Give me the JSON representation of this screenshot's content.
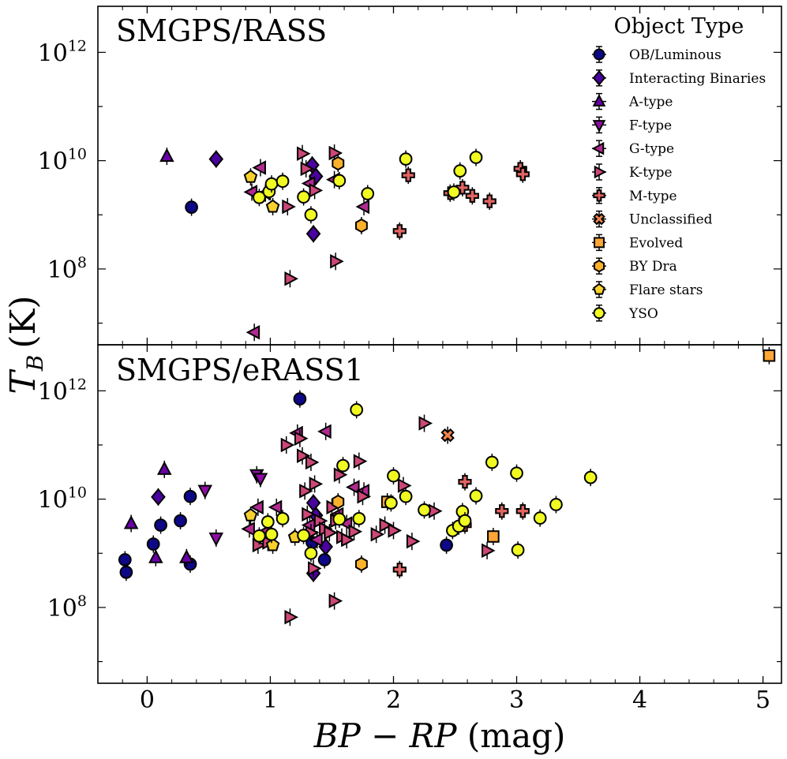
{
  "chart_data": {
    "type": "scatter",
    "xlabel": "BP − RP (mag)",
    "xlabel_parts": {
      "var1": "BP",
      "minus": "−",
      "var2": "RP",
      "unit": "(mag)"
    },
    "ylabel": "T_B (K)",
    "ylabel_parts": {
      "var": "T",
      "sub": "B",
      "unit": "(K)"
    },
    "xlim": [
      -0.4,
      5.15
    ],
    "ylim_log10": [
      6.6,
      12.85
    ],
    "x_ticks": [
      0,
      1,
      2,
      3,
      4,
      5
    ],
    "x_tick_labels": [
      "0",
      "1",
      "2",
      "3",
      "4",
      "5"
    ],
    "y_ticks_log10": [
      8,
      10,
      12
    ],
    "y_tick_base": "10",
    "y_tick_exponents": [
      "8",
      "10",
      "12"
    ],
    "legend": {
      "title": "Object Type",
      "placement": "top-right",
      "entries": [
        {
          "name": "OB/Luminous",
          "marker": "circle",
          "color": "#0d0887"
        },
        {
          "name": "Interacting Binaries",
          "marker": "diamond",
          "color": "#4a02a0"
        },
        {
          "name": "A-type",
          "marker": "triangle-up",
          "color": "#6a00a8"
        },
        {
          "name": "F-type",
          "marker": "triangle-down",
          "color": "#8f0da4"
        },
        {
          "name": "G-type",
          "marker": "triangle-left",
          "color": "#b12a90"
        },
        {
          "name": "K-type",
          "marker": "triangle-right",
          "color": "#cc4778"
        },
        {
          "name": "M-type",
          "marker": "plus",
          "color": "#e16462"
        },
        {
          "name": "Unclassified",
          "marker": "x",
          "color": "#f2844b"
        },
        {
          "name": "Evolved",
          "marker": "square",
          "color": "#fca636"
        },
        {
          "name": "BY Dra",
          "marker": "hexagon",
          "color": "#fcb12b"
        },
        {
          "name": "Flare stars",
          "marker": "pentagon",
          "color": "#f6d02d"
        },
        {
          "name": "YSO",
          "marker": "circle",
          "color": "#f0f921"
        }
      ]
    },
    "panels": [
      {
        "title": "SMGPS/RASS",
        "series": [
          {
            "name": "OB/Luminous",
            "points": [
              [
                0.36,
                9.14
              ]
            ]
          },
          {
            "name": "Interacting Binaries",
            "points": [
              [
                0.56,
                10.03
              ],
              [
                1.34,
                9.92
              ],
              [
                1.37,
                9.71
              ],
              [
                1.35,
                8.65
              ]
            ]
          },
          {
            "name": "A-type",
            "points": [
              [
                0.16,
                10.08
              ]
            ]
          },
          {
            "name": "F-type",
            "points": []
          },
          {
            "name": "G-type",
            "points": [
              [
                0.85,
                9.42
              ],
              [
                0.92,
                9.87
              ],
              [
                0.96,
                9.4
              ],
              [
                1.32,
                9.58
              ],
              [
                1.52,
                9.65
              ],
              [
                1.76,
                9.15
              ],
              [
                0.87,
                6.83
              ]
            ]
          },
          {
            "name": "K-type",
            "points": [
              [
                1.14,
                9.15
              ],
              [
                1.26,
                10.13
              ],
              [
                1.29,
                9.85
              ],
              [
                1.36,
                9.45
              ],
              [
                1.52,
                10.14
              ],
              [
                1.53,
                8.14
              ],
              [
                1.16,
                7.82
              ]
            ]
          },
          {
            "name": "M-type",
            "points": [
              [
                2.12,
                9.73
              ],
              [
                2.46,
                9.4
              ],
              [
                2.56,
                9.5
              ],
              [
                2.64,
                9.35
              ],
              [
                2.78,
                9.25
              ],
              [
                3.03,
                9.85
              ],
              [
                3.05,
                9.75
              ],
              [
                2.05,
                8.7
              ]
            ]
          },
          {
            "name": "Unclassified",
            "points": []
          },
          {
            "name": "Evolved",
            "points": []
          },
          {
            "name": "BY Dra",
            "points": [
              [
                1.55,
                9.95
              ],
              [
                1.74,
                8.8
              ]
            ]
          },
          {
            "name": "Flare stars",
            "points": [
              [
                0.84,
                9.7
              ],
              [
                1.02,
                9.15
              ]
            ]
          },
          {
            "name": "YSO",
            "points": [
              [
                0.91,
                9.32
              ],
              [
                0.99,
                9.43
              ],
              [
                1.01,
                9.57
              ],
              [
                1.1,
                9.62
              ],
              [
                1.27,
                9.33
              ],
              [
                1.33,
                9.0
              ],
              [
                1.56,
                9.63
              ],
              [
                1.79,
                9.39
              ],
              [
                2.1,
                10.03
              ],
              [
                2.49,
                9.42
              ],
              [
                2.54,
                9.81
              ],
              [
                2.67,
                10.06
              ]
            ]
          }
        ]
      },
      {
        "title": "SMGPS/eRASS1",
        "series": [
          {
            "name": "OB/Luminous",
            "points": [
              [
                -0.18,
                8.88
              ],
              [
                -0.17,
                8.65
              ],
              [
                0.05,
                9.17
              ],
              [
                0.11,
                9.52
              ],
              [
                0.27,
                9.6
              ],
              [
                0.35,
                10.05
              ],
              [
                0.35,
                8.8
              ],
              [
                1.24,
                11.85
              ],
              [
                1.34,
                9.2
              ],
              [
                1.44,
                8.88
              ],
              [
                2.43,
                9.15
              ]
            ]
          },
          {
            "name": "Interacting Binaries",
            "points": [
              [
                0.09,
                10.04
              ],
              [
                1.35,
                9.93
              ],
              [
                1.37,
                9.7
              ],
              [
                1.45,
                9.12
              ],
              [
                1.35,
                8.63
              ]
            ]
          },
          {
            "name": "A-type",
            "points": [
              [
                -0.13,
                9.55
              ],
              [
                0.07,
                8.92
              ],
              [
                0.14,
                10.55
              ],
              [
                0.32,
                8.92
              ]
            ]
          },
          {
            "name": "F-type",
            "points": [
              [
                0.47,
                10.16
              ],
              [
                0.56,
                9.28
              ],
              [
                0.89,
                10.45
              ],
              [
                0.92,
                10.38
              ]
            ]
          },
          {
            "name": "G-type",
            "points": [
              [
                0.83,
                9.45
              ],
              [
                0.9,
                9.85
              ],
              [
                0.96,
                9.4
              ],
              [
                1.05,
                9.85
              ],
              [
                1.22,
                11.22
              ],
              [
                1.32,
                9.52
              ],
              [
                1.38,
                9.25
              ],
              [
                1.45,
                11.25
              ],
              [
                1.55,
                9.72
              ],
              [
                1.62,
                9.55
              ],
              [
                1.68,
                10.22
              ],
              [
                1.76,
                10.15
              ]
            ]
          },
          {
            "name": "K-type",
            "points": [
              [
                0.9,
                9.15
              ],
              [
                0.98,
                9.2
              ],
              [
                1.13,
                11.0
              ],
              [
                1.24,
                11.12
              ],
              [
                1.26,
                10.8
              ],
              [
                1.28,
                10.15
              ],
              [
                1.3,
                9.72
              ],
              [
                1.33,
                10.68
              ],
              [
                1.36,
                10.28
              ],
              [
                1.4,
                9.6
              ],
              [
                1.44,
                9.45
              ],
              [
                1.48,
                9.38
              ],
              [
                1.5,
                9.85
              ],
              [
                1.53,
                9.6
              ],
              [
                1.56,
                10.45
              ],
              [
                1.58,
                9.3
              ],
              [
                1.62,
                9.25
              ],
              [
                1.68,
                9.4
              ],
              [
                1.72,
                10.7
              ],
              [
                1.75,
                10.05
              ],
              [
                1.86,
                9.35
              ],
              [
                1.93,
                9.52
              ],
              [
                2.0,
                9.42
              ],
              [
                2.08,
                10.25
              ],
              [
                2.15,
                9.22
              ],
              [
                2.25,
                11.4
              ],
              [
                2.33,
                9.78
              ],
              [
                2.76,
                9.05
              ],
              [
                1.35,
                8.72
              ],
              [
                1.16,
                7.82
              ],
              [
                1.52,
                8.12
              ],
              [
                1.33,
                9.38
              ]
            ]
          },
          {
            "name": "M-type",
            "points": [
              [
                2.05,
                8.7
              ],
              [
                2.58,
                10.32
              ],
              [
                2.58,
                9.52
              ],
              [
                2.88,
                9.78
              ],
              [
                3.05,
                9.78
              ]
            ]
          },
          {
            "name": "Unclassified",
            "points": [
              [
                2.44,
                11.18
              ]
            ]
          },
          {
            "name": "Evolved",
            "points": [
              [
                1.95,
                9.95
              ],
              [
                2.81,
                9.31
              ],
              [
                5.05,
                12.65
              ]
            ]
          },
          {
            "name": "BY Dra",
            "points": [
              [
                1.55,
                9.95
              ],
              [
                1.74,
                8.8
              ]
            ]
          },
          {
            "name": "Flare stars",
            "points": [
              [
                0.84,
                9.7
              ],
              [
                1.02,
                9.15
              ],
              [
                1.2,
                9.3
              ]
            ]
          },
          {
            "name": "YSO",
            "points": [
              [
                0.91,
                9.32
              ],
              [
                0.98,
                9.58
              ],
              [
                1.01,
                9.35
              ],
              [
                1.1,
                9.64
              ],
              [
                1.27,
                9.33
              ],
              [
                1.33,
                9.0
              ],
              [
                1.56,
                9.63
              ],
              [
                1.59,
                10.62
              ],
              [
                1.7,
                11.65
              ],
              [
                1.72,
                9.64
              ],
              [
                1.98,
                9.93
              ],
              [
                2.0,
                10.43
              ],
              [
                2.1,
                10.05
              ],
              [
                2.25,
                9.8
              ],
              [
                2.48,
                9.42
              ],
              [
                2.53,
                9.5
              ],
              [
                2.56,
                9.77
              ],
              [
                2.58,
                9.6
              ],
              [
                2.67,
                10.06
              ],
              [
                2.8,
                10.68
              ],
              [
                3.0,
                10.48
              ],
              [
                3.01,
                9.06
              ],
              [
                3.19,
                9.65
              ],
              [
                3.32,
                9.9
              ],
              [
                3.6,
                10.4
              ]
            ]
          }
        ]
      }
    ]
  }
}
